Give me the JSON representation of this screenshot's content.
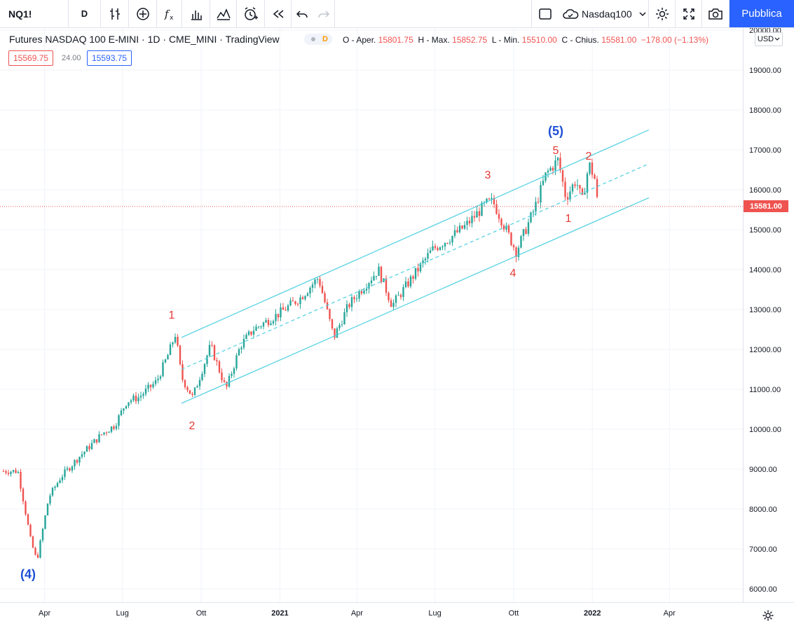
{
  "toolbar": {
    "symbol": "NQ1!",
    "interval": "D",
    "compare_symbol": "Nasdaq100",
    "publish_label": "Pubblica"
  },
  "legend": {
    "title": "Futures NASDAQ 100 E-MINI · 1D · CME_MINI · TradingView",
    "data_badge": "D",
    "open_label": "O - Aper.",
    "open": "15801.75",
    "high_label": "H - Max.",
    "high": "15852.75",
    "low_label": "L - Min.",
    "low": "15510.00",
    "close_label": "C - Chius.",
    "close": "15581.00",
    "change": "−178.00 (−1.13%)",
    "bid": "15569.75",
    "spread": "24.00",
    "ask": "15593.75"
  },
  "price_axis": {
    "currency": "USD",
    "last_price": "15581.00",
    "labels": [
      "20000.00",
      "19000.00",
      "18000.00",
      "17000.00",
      "16000.00",
      "15000.00",
      "14000.00",
      "13000.00",
      "12000.00",
      "11000.00",
      "10000.00",
      "9000.00",
      "8000.00",
      "7000.00",
      "6000.00"
    ]
  },
  "time_axis": {
    "labels": [
      "Apr",
      "Lug",
      "Ott",
      "2021",
      "Apr",
      "Lug",
      "Ott",
      "2022",
      "Apr"
    ]
  },
  "annotations": {
    "wave_4": "(4)",
    "wave_5": "(5)",
    "w1": "1",
    "w2": "2",
    "w3": "3",
    "w4": "4",
    "w5": "5",
    "c1": "1",
    "c2": "2"
  },
  "colors": {
    "up": "#26a69a",
    "down": "#ef5350",
    "channel": "#4dd0e1",
    "wave_label": "#e53935",
    "wave_major": "#1e4fd6",
    "accent": "#2962ff"
  },
  "chart_data": {
    "type": "candlestick",
    "symbol": "NQ1!",
    "interval": "1D",
    "ylim": [
      5800,
      20300
    ],
    "x_range": [
      "2020-03",
      "2022-05"
    ],
    "price_line": 15581.0,
    "series": [
      {
        "name": "NQ1!",
        "points": [
          [
            "2020-03-01",
            8950
          ],
          [
            "2020-03-16",
            7200
          ],
          [
            "2020-03-23",
            6700
          ],
          [
            "2020-04-06",
            8300
          ],
          [
            "2020-04-20",
            8800
          ],
          [
            "2020-05-11",
            9300
          ],
          [
            "2020-06-08",
            9900
          ],
          [
            "2020-06-22",
            10100
          ],
          [
            "2020-07-06",
            10700
          ],
          [
            "2020-07-20",
            10800
          ],
          [
            "2020-08-10",
            11200
          ],
          [
            "2020-08-24",
            11900
          ],
          [
            "2020-09-01",
            12400
          ],
          [
            "2020-09-08",
            11300
          ],
          [
            "2020-09-21",
            10800
          ],
          [
            "2020-10-12",
            12100
          ],
          [
            "2020-10-30",
            11000
          ],
          [
            "2020-11-16",
            12100
          ],
          [
            "2020-12-01",
            12500
          ],
          [
            "2020-12-31",
            12900
          ],
          [
            "2021-01-25",
            13300
          ],
          [
            "2021-02-15",
            13800
          ],
          [
            "2021-03-05",
            12300
          ],
          [
            "2021-03-22",
            13100
          ],
          [
            "2021-04-06",
            13500
          ],
          [
            "2021-04-26",
            14000
          ],
          [
            "2021-05-12",
            13100
          ],
          [
            "2021-06-01",
            13700
          ],
          [
            "2021-06-28",
            14500
          ],
          [
            "2021-07-19",
            14800
          ],
          [
            "2021-08-06",
            15100
          ],
          [
            "2021-08-30",
            15650
          ],
          [
            "2021-09-07",
            15700
          ],
          [
            "2021-10-04",
            14450
          ],
          [
            "2021-10-25",
            15500
          ],
          [
            "2021-11-08",
            16400
          ],
          [
            "2021-11-22",
            16750
          ],
          [
            "2021-12-01",
            15800
          ],
          [
            "2021-12-13",
            16250
          ],
          [
            "2021-12-20",
            15700
          ],
          [
            "2021-12-28",
            16650
          ],
          [
            "2022-01-05",
            16200
          ],
          [
            "2022-01-07",
            15581
          ]
        ]
      }
    ],
    "channel": {
      "upper": [
        [
          "2020-09-08",
          12300
        ],
        [
          "2022-03-08",
          17500
        ]
      ],
      "middle": [
        [
          "2020-09-08",
          11500
        ],
        [
          "2022-03-08",
          16650
        ]
      ],
      "lower": [
        [
          "2020-09-08",
          10650
        ],
        [
          "2022-03-08",
          15800
        ]
      ]
    }
  }
}
